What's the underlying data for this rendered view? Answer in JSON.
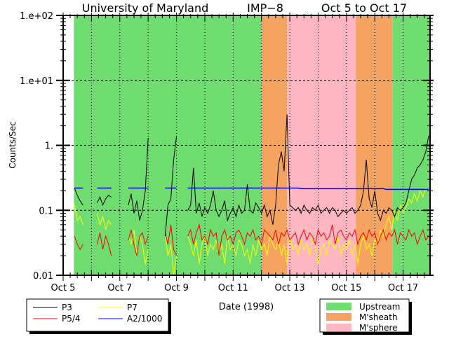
{
  "chart_data": {
    "type": "line",
    "title_parts": [
      "University of Maryland",
      "IMP−8",
      "Oct 5 to Oct 17"
    ],
    "xlabel": "Date (1998)",
    "ylabel": "Counts/Sec",
    "y_scale": "log",
    "ylim": [
      0.01,
      100
    ],
    "y_tick_labels": [
      "1.e+02",
      "1.e+01",
      "1.",
      "0.1",
      "0.01"
    ],
    "y_tick_values": [
      100,
      10,
      1,
      0.1,
      0.01
    ],
    "xlim_oct_day": [
      5,
      17.95
    ],
    "x_tick_labels": [
      "Oct 5",
      "Oct 7",
      "Oct 9",
      "Oct 11",
      "Oct 13",
      "Oct 15",
      "Oct 17"
    ],
    "x_tick_days": [
      5,
      7,
      9,
      11,
      13,
      15,
      17
    ],
    "grid": true,
    "regions": [
      {
        "name": "Upstream",
        "from": 5.38,
        "to": 12.0,
        "color": "#6fdc6f"
      },
      {
        "name": "M'sheath",
        "from": 12.0,
        "to": 12.9,
        "color": "#f4a460"
      },
      {
        "name": "M'sphere",
        "from": 12.9,
        "to": 15.33,
        "color": "#ffb6c1"
      },
      {
        "name": "M'sheath",
        "from": 15.33,
        "to": 16.63,
        "color": "#f4a460"
      },
      {
        "name": "Upstream",
        "from": 16.63,
        "to": 17.95,
        "color": "#6fdc6f"
      }
    ],
    "region_legend": [
      {
        "label": "Upstream",
        "color": "#6fdc6f"
      },
      {
        "label": "M'sheath",
        "color": "#f4a460"
      },
      {
        "label": "M'sphere",
        "color": "#ffb6c1"
      }
    ],
    "x": [
      5.4,
      5.5,
      5.6,
      5.7,
      5.8,
      5.9,
      6.0,
      6.1,
      6.2,
      6.3,
      6.4,
      6.5,
      6.6,
      6.7,
      6.8,
      6.9,
      7.0,
      7.1,
      7.2,
      7.3,
      7.4,
      7.5,
      7.6,
      7.7,
      7.8,
      7.9,
      8.0,
      8.1,
      8.2,
      8.3,
      8.4,
      8.5,
      8.6,
      8.7,
      8.8,
      8.9,
      9.0,
      9.1,
      9.2,
      9.3,
      9.4,
      9.5,
      9.6,
      9.7,
      9.8,
      9.9,
      10.0,
      10.1,
      10.2,
      10.3,
      10.4,
      10.5,
      10.6,
      10.7,
      10.8,
      10.9,
      11.0,
      11.1,
      11.2,
      11.3,
      11.4,
      11.5,
      11.6,
      11.7,
      11.8,
      11.9,
      12.0,
      12.1,
      12.2,
      12.3,
      12.4,
      12.5,
      12.6,
      12.7,
      12.8,
      12.9,
      13.0,
      13.1,
      13.2,
      13.3,
      13.4,
      13.5,
      13.6,
      13.7,
      13.8,
      13.9,
      14.0,
      14.1,
      14.2,
      14.3,
      14.4,
      14.5,
      14.6,
      14.7,
      14.8,
      14.9,
      15.0,
      15.1,
      15.2,
      15.3,
      15.4,
      15.5,
      15.6,
      15.7,
      15.8,
      15.9,
      16.0,
      16.1,
      16.2,
      16.3,
      16.4,
      16.5,
      16.6,
      16.7,
      16.8,
      16.9,
      17.0,
      17.1,
      17.2,
      17.3,
      17.4,
      17.5,
      17.6,
      17.7,
      17.8,
      17.9
    ],
    "series": [
      {
        "name": "P3",
        "color": "#000000",
        "values": [
          0.22,
          0.17,
          0.14,
          0.12,
          null,
          null,
          null,
          null,
          0.13,
          0.16,
          0.12,
          0.15,
          0.17,
          0.16,
          null,
          null,
          null,
          null,
          null,
          0.12,
          0.18,
          0.09,
          0.14,
          0.07,
          0.1,
          0.2,
          1.3,
          null,
          0.2,
          null,
          null,
          null,
          0.04,
          0.12,
          0.15,
          0.6,
          1.35,
          null,
          null,
          null,
          0.1,
          0.12,
          0.45,
          0.09,
          0.13,
          0.08,
          0.11,
          0.09,
          0.12,
          0.2,
          0.1,
          0.08,
          0.1,
          0.14,
          0.07,
          0.09,
          0.11,
          0.08,
          0.12,
          0.09,
          0.1,
          0.25,
          0.1,
          0.09,
          0.13,
          0.11,
          0.09,
          0.12,
          0.08,
          0.1,
          0.06,
          0.12,
          0.5,
          0.8,
          0.4,
          3.0,
          0.12,
          0.11,
          0.1,
          0.11,
          0.09,
          0.12,
          0.1,
          0.09,
          0.11,
          0.1,
          0.12,
          0.09,
          0.1,
          0.11,
          0.09,
          0.11,
          0.1,
          0.08,
          0.09,
          0.1,
          0.09,
          0.1,
          0.11,
          0.09,
          0.1,
          0.12,
          0.2,
          0.6,
          0.15,
          0.11,
          0.2,
          0.09,
          0.07,
          0.1,
          0.09,
          0.11,
          0.1,
          0.08,
          0.11,
          0.1,
          0.11,
          0.13,
          0.2,
          0.3,
          0.35,
          0.45,
          0.5,
          0.6,
          0.8,
          1.4
        ]
      },
      {
        "name": "P5/4",
        "color": "#ff0000",
        "values": [
          0.04,
          0.03,
          0.025,
          0.03,
          null,
          null,
          null,
          null,
          0.03,
          0.045,
          0.025,
          0.04,
          0.03,
          0.02,
          null,
          null,
          null,
          null,
          null,
          0.035,
          0.05,
          0.03,
          0.02,
          0.04,
          0.045,
          0.03,
          0.04,
          null,
          0.03,
          null,
          null,
          null,
          0.045,
          0.03,
          0.06,
          0.025,
          0.02,
          null,
          null,
          null,
          0.04,
          0.05,
          0.03,
          0.045,
          0.06,
          0.035,
          0.04,
          0.03,
          0.05,
          0.04,
          0.045,
          0.02,
          0.04,
          0.05,
          0.035,
          0.04,
          0.03,
          0.045,
          0.05,
          0.04,
          0.03,
          0.045,
          0.04,
          0.05,
          0.035,
          0.04,
          0.03,
          0.05,
          0.045,
          0.04,
          0.035,
          0.05,
          0.03,
          0.045,
          0.04,
          0.05,
          0.035,
          0.04,
          0.045,
          0.03,
          0.04,
          0.05,
          0.035,
          0.045,
          0.04,
          0.03,
          0.05,
          0.04,
          0.045,
          0.035,
          0.04,
          0.06,
          0.03,
          0.045,
          0.05,
          0.04,
          0.035,
          0.045,
          0.04,
          0.05,
          0.03,
          0.04,
          0.045,
          0.035,
          0.05,
          0.04,
          0.045,
          0.03,
          0.04,
          0.05,
          0.035,
          0.045,
          0.04,
          0.05,
          0.03,
          0.045,
          0.04,
          0.035,
          0.05,
          0.04,
          0.045,
          0.03,
          0.04,
          0.05,
          0.035,
          0.04
        ]
      },
      {
        "name": "P7",
        "color": "#ffff00",
        "values": [
          0.12,
          0.07,
          0.08,
          0.06,
          null,
          null,
          null,
          null,
          0.09,
          0.06,
          0.08,
          0.05,
          0.07,
          0.06,
          null,
          null,
          null,
          null,
          null,
          0.04,
          0.03,
          0.05,
          0.02,
          0.04,
          0.03,
          0.015,
          0.025,
          null,
          0.03,
          null,
          null,
          null,
          0.04,
          0.02,
          0.03,
          0.01,
          0.02,
          null,
          null,
          null,
          0.04,
          0.03,
          0.02,
          0.035,
          0.015,
          0.03,
          0.04,
          0.02,
          0.03,
          0.025,
          0.035,
          0.02,
          0.03,
          0.015,
          0.04,
          0.025,
          0.03,
          0.02,
          0.035,
          0.03,
          0.02,
          0.025,
          0.015,
          0.03,
          0.02,
          0.035,
          0.025,
          0.03,
          0.02,
          0.04,
          0.03,
          0.025,
          0.035,
          0.02,
          0.03,
          0.015,
          0.04,
          0.025,
          0.03,
          0.02,
          0.035,
          0.025,
          0.03,
          0.02,
          0.04,
          0.03,
          0.015,
          0.025,
          0.03,
          0.02,
          0.035,
          0.03,
          0.025,
          0.04,
          0.02,
          0.03,
          0.025,
          0.035,
          0.02,
          0.03,
          0.015,
          0.03,
          0.04,
          0.025,
          0.03,
          0.02,
          0.035,
          0.03,
          0.05,
          0.04,
          0.06,
          0.08,
          0.05,
          0.1,
          0.07,
          0.12,
          0.09,
          0.11,
          0.15,
          0.13,
          0.18,
          0.14,
          0.2,
          0.16,
          0.22,
          0.2
        ]
      },
      {
        "name": "A2/1000",
        "color": "#0000ff",
        "values": [
          0.22,
          0.22,
          0.22,
          0.22,
          null,
          null,
          null,
          null,
          0.22,
          0.22,
          0.22,
          0.22,
          0.22,
          0.22,
          null,
          null,
          null,
          null,
          null,
          0.22,
          0.22,
          0.22,
          0.22,
          0.22,
          0.22,
          0.22,
          0.22,
          null,
          0.22,
          null,
          null,
          null,
          0.22,
          0.22,
          0.22,
          0.22,
          0.22,
          null,
          null,
          null,
          0.22,
          0.22,
          0.22,
          0.22,
          0.22,
          0.22,
          0.22,
          0.22,
          0.22,
          0.22,
          0.22,
          0.22,
          0.22,
          0.22,
          0.22,
          0.22,
          0.22,
          0.22,
          0.22,
          0.22,
          0.22,
          0.22,
          0.22,
          0.22,
          0.22,
          0.22,
          0.22,
          0.22,
          0.22,
          0.22,
          0.22,
          0.22,
          0.22,
          0.22,
          0.22,
          0.22,
          0.22,
          0.22,
          0.22,
          0.22,
          0.215,
          0.215,
          0.215,
          0.215,
          0.215,
          0.215,
          0.215,
          0.215,
          0.215,
          0.215,
          0.215,
          0.215,
          0.215,
          0.215,
          0.215,
          0.215,
          0.215,
          0.215,
          0.215,
          0.215,
          0.215,
          0.215,
          0.215,
          0.215,
          0.215,
          0.215,
          0.215,
          0.215,
          0.215,
          0.215,
          0.21,
          0.21,
          0.21,
          0.21,
          0.21,
          0.21,
          0.21,
          0.21,
          0.21,
          0.21,
          0.21,
          0.21,
          0.21,
          0.21,
          0.21,
          0.21
        ]
      }
    ]
  }
}
